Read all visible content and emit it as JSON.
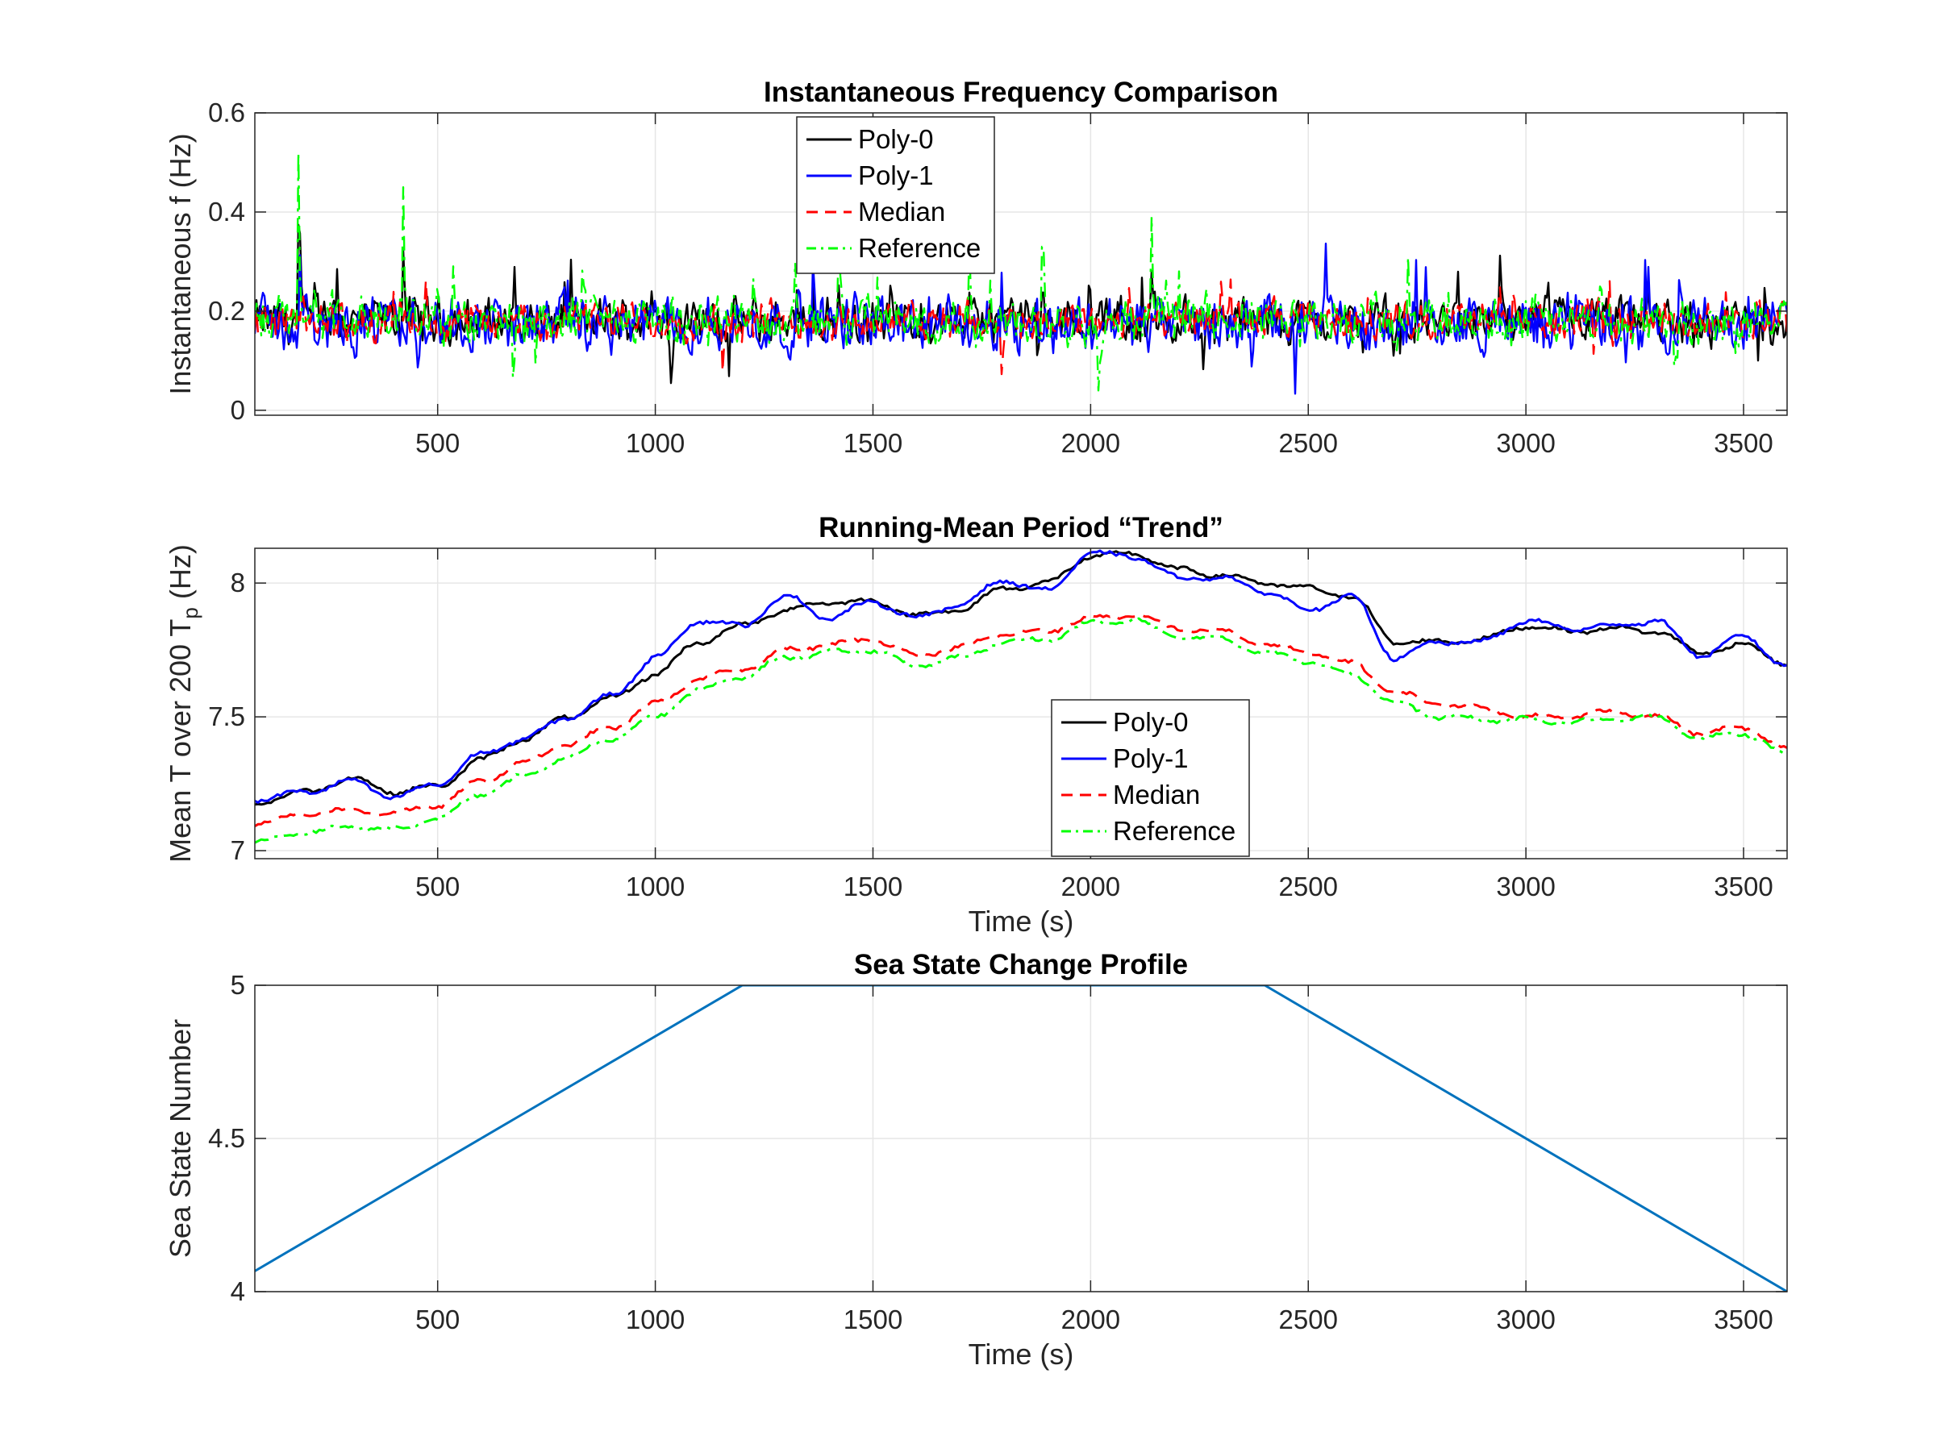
{
  "chart_data": [
    {
      "type": "line",
      "title": "Instantaneous Frequency Comparison",
      "xlabel": "",
      "ylabel": "Instantaneous f (Hz)",
      "xlim": [
        80,
        3600
      ],
      "ylim": [
        -0.01,
        0.6
      ],
      "xticks": [
        500,
        1000,
        1500,
        2000,
        2500,
        3000,
        3500
      ],
      "xtick_labels": [
        "500",
        "1000",
        "1500",
        "2000",
        "2500",
        "3000",
        "3500"
      ],
      "yticks": [
        0,
        0.2,
        0.4,
        0.6
      ],
      "ytick_labels": [
        "0",
        "0.2",
        "0.4",
        "0.6"
      ],
      "grid": true,
      "legend_position": "top-center",
      "series": [
        {
          "name": "Poly-0",
          "color": "#000000",
          "style": "solid",
          "base": 0.18,
          "amplitude": 0.055
        },
        {
          "name": "Poly-1",
          "color": "#0000ff",
          "style": "solid",
          "base": 0.175,
          "amplitude": 0.07
        },
        {
          "name": "Median",
          "color": "#ff0000",
          "style": "dashed",
          "base": 0.18,
          "amplitude": 0.045
        },
        {
          "name": "Reference",
          "color": "#00ff00",
          "style": "dashdot",
          "base": 0.18,
          "amplitude": 0.06
        }
      ],
      "peaks": [
        {
          "x": 180,
          "y": 0.52
        },
        {
          "x": 420,
          "y": 0.45
        },
        {
          "x": 1420,
          "y": 0.35
        },
        {
          "x": 2140,
          "y": 0.39
        },
        {
          "x": 1720,
          "y": 0.33
        },
        {
          "x": 1890,
          "y": 0.33
        }
      ]
    },
    {
      "type": "line",
      "title": "Running-Mean Period “Trend”",
      "xlabel": "Time (s)",
      "ylabel": "Mean T over 200 T",
      "ylabel_subscript": "p",
      "ylabel_suffix": " (Hz)",
      "xlim": [
        80,
        3600
      ],
      "ylim": [
        6.97,
        8.13
      ],
      "xticks": [
        500,
        1000,
        1500,
        2000,
        2500,
        3000,
        3500
      ],
      "xtick_labels": [
        "500",
        "1000",
        "1500",
        "2000",
        "2500",
        "3000",
        "3500"
      ],
      "yticks": [
        7,
        7.5,
        8
      ],
      "ytick_labels": [
        "7",
        "7.5",
        "8"
      ],
      "grid": true,
      "legend_position": "center",
      "series": [
        {
          "name": "Poly-0",
          "color": "#000000",
          "style": "solid",
          "x": [
            80,
            200,
            300,
            400,
            500,
            600,
            700,
            800,
            900,
            1000,
            1100,
            1200,
            1300,
            1400,
            1500,
            1600,
            1700,
            1800,
            1900,
            2000,
            2100,
            2200,
            2300,
            2400,
            2500,
            2600,
            2700,
            2800,
            2900,
            3000,
            3100,
            3200,
            3300,
            3400,
            3500,
            3600
          ],
          "y": [
            7.18,
            7.22,
            7.27,
            7.22,
            7.24,
            7.34,
            7.42,
            7.5,
            7.57,
            7.66,
            7.78,
            7.84,
            7.9,
            7.93,
            7.93,
            7.88,
            7.9,
            7.98,
            8.0,
            8.1,
            8.11,
            8.05,
            8.03,
            8.0,
            7.98,
            7.95,
            7.78,
            7.78,
            7.79,
            7.84,
            7.82,
            7.83,
            7.82,
            7.74,
            7.77,
            7.7
          ]
        },
        {
          "name": "Poly-1",
          "color": "#0000ff",
          "style": "solid",
          "x": [
            80,
            200,
            300,
            400,
            500,
            600,
            700,
            800,
            900,
            1000,
            1100,
            1200,
            1300,
            1400,
            1500,
            1600,
            1700,
            1800,
            1900,
            2000,
            2100,
            2200,
            2300,
            2400,
            2500,
            2600,
            2700,
            2800,
            2900,
            3000,
            3100,
            3200,
            3300,
            3400,
            3500,
            3600
          ],
          "y": [
            7.19,
            7.22,
            7.26,
            7.2,
            7.25,
            7.36,
            7.42,
            7.5,
            7.58,
            7.72,
            7.86,
            7.84,
            7.95,
            7.87,
            7.93,
            7.87,
            7.92,
            8.01,
            7.97,
            8.11,
            8.1,
            8.02,
            8.02,
            7.97,
            7.9,
            7.95,
            7.72,
            7.78,
            7.78,
            7.86,
            7.83,
            7.84,
            7.86,
            7.73,
            7.8,
            7.69
          ]
        },
        {
          "name": "Median",
          "color": "#ff0000",
          "style": "dashed",
          "x": [
            80,
            200,
            300,
            400,
            500,
            600,
            700,
            800,
            900,
            1000,
            1100,
            1200,
            1300,
            1400,
            1500,
            1600,
            1700,
            1800,
            1900,
            2000,
            2100,
            2200,
            2300,
            2400,
            2500,
            2600,
            2700,
            2800,
            2900,
            3000,
            3100,
            3200,
            3300,
            3400,
            3500,
            3600
          ],
          "y": [
            7.1,
            7.14,
            7.15,
            7.14,
            7.17,
            7.26,
            7.33,
            7.4,
            7.46,
            7.55,
            7.64,
            7.68,
            7.75,
            7.77,
            7.79,
            7.73,
            7.76,
            7.81,
            7.82,
            7.87,
            7.88,
            7.83,
            7.82,
            7.77,
            7.74,
            7.7,
            7.59,
            7.55,
            7.53,
            7.5,
            7.5,
            7.52,
            7.5,
            7.44,
            7.46,
            7.38
          ]
        },
        {
          "name": "Reference",
          "color": "#00ff00",
          "style": "dashdot",
          "x": [
            80,
            200,
            300,
            400,
            500,
            600,
            700,
            800,
            900,
            1000,
            1100,
            1200,
            1300,
            1400,
            1500,
            1600,
            1700,
            1800,
            1900,
            2000,
            2100,
            2200,
            2300,
            2400,
            2500,
            2600,
            2700,
            2800,
            2900,
            3000,
            3100,
            3200,
            3300,
            3400,
            3500,
            3600
          ],
          "y": [
            7.03,
            7.07,
            7.09,
            7.08,
            7.12,
            7.21,
            7.28,
            7.35,
            7.42,
            7.5,
            7.6,
            7.65,
            7.72,
            7.74,
            7.75,
            7.69,
            7.72,
            7.78,
            7.79,
            7.85,
            7.86,
            7.8,
            7.79,
            7.74,
            7.71,
            7.66,
            7.55,
            7.5,
            7.49,
            7.49,
            7.48,
            7.49,
            7.5,
            7.42,
            7.44,
            7.36
          ]
        }
      ]
    },
    {
      "type": "line",
      "title": "Sea State Change Profile",
      "xlabel": "Time (s)",
      "ylabel": "Sea State Number",
      "xlim": [
        80,
        3600
      ],
      "ylim": [
        4,
        5
      ],
      "xticks": [
        500,
        1000,
        1500,
        2000,
        2500,
        3000,
        3500
      ],
      "xtick_labels": [
        "500",
        "1000",
        "1500",
        "2000",
        "2500",
        "3000",
        "3500"
      ],
      "yticks": [
        4,
        4.5,
        5
      ],
      "ytick_labels": [
        "4",
        "4.5",
        "5"
      ],
      "grid": true,
      "series": [
        {
          "name": "",
          "color": "#0072bd",
          "style": "solid",
          "x": [
            80,
            1200,
            2400,
            3600
          ],
          "y": [
            4.067,
            5,
            5,
            4
          ]
        }
      ]
    }
  ]
}
